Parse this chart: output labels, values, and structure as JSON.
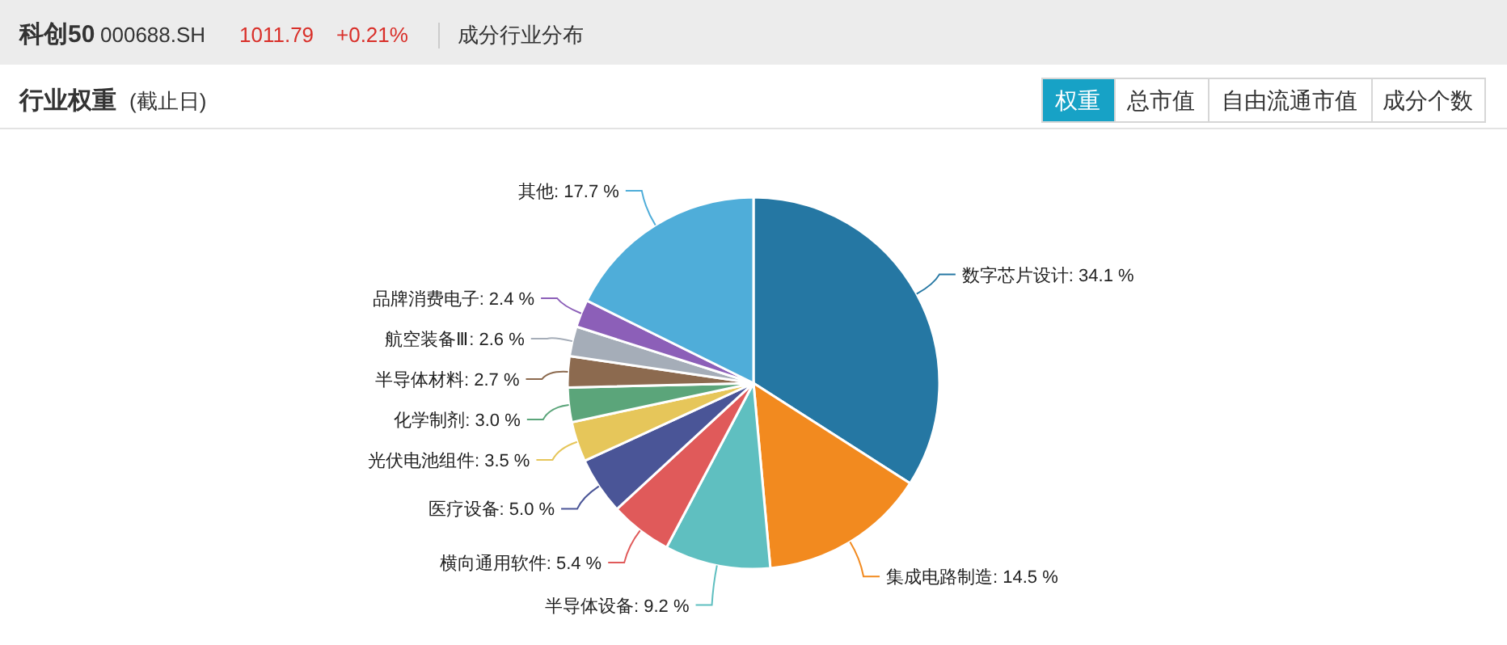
{
  "chart_data": {
    "type": "pie",
    "title": "行业权重",
    "subtitle": "(截止日)",
    "annotations": [
      "科创50",
      "000688.SH",
      "1011.79",
      "+0.21%",
      "成分行业分布",
      "权重",
      "总市值",
      "自由流通市值",
      "成分个数"
    ],
    "categories": [
      "数字芯片设计",
      "集成电路制造",
      "半导体设备",
      "横向通用软件",
      "医疗设备",
      "光伏电池组件",
      "化学制剂",
      "半导体材料",
      "航空装备Ⅲ",
      "品牌消费电子",
      "其他"
    ],
    "values": [
      34.1,
      14.5,
      9.2,
      5.4,
      5.0,
      3.5,
      3.0,
      2.7,
      2.6,
      2.4,
      17.7
    ],
    "colors": [
      "#2577a3",
      "#f28a1f",
      "#5fbfc0",
      "#e05a5a",
      "#4a5597",
      "#e6c65a",
      "#5ba57a",
      "#8c6a4f",
      "#a5adb8",
      "#8c5fb8",
      "#4fadd9"
    ],
    "value_labels": [
      ": 34.1 %",
      ": 14.5 %",
      ": 9.2 %",
      ": 5.4 %",
      ": 5.0 %",
      ": 3.5 %",
      ": 3.0 %",
      ": 2.7 %",
      ": 2.6 %",
      ": 2.4 %",
      ": 17.7 %"
    ]
  }
}
